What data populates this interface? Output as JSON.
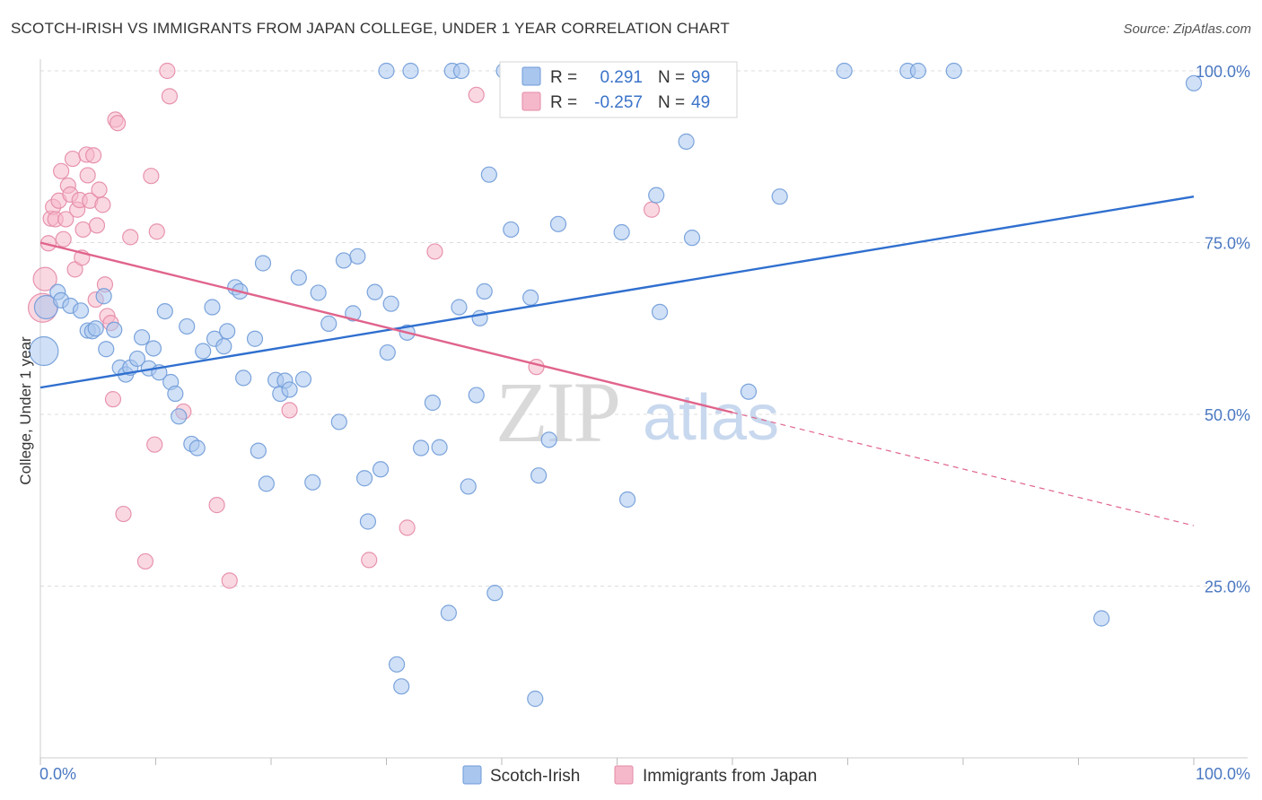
{
  "title": "SCOTCH-IRISH VS IMMIGRANTS FROM JAPAN COLLEGE, UNDER 1 YEAR CORRELATION CHART",
  "source": "Source: ZipAtlas.com",
  "watermark": {
    "zip": "ZIP",
    "atlas": "atlas"
  },
  "legend": {
    "r_label": "R =",
    "n_label": "N =",
    "rows": [
      {
        "r": "0.291",
        "n": "99",
        "color": "#a9c6ee",
        "edge": "#6f9bd8"
      },
      {
        "r": "-0.257",
        "n": "49",
        "color": "#f5b8cb",
        "edge": "#e48aa6"
      }
    ]
  },
  "bottom_legend": [
    {
      "label": "Scotch-Irish",
      "color": "#a9c6ee",
      "edge": "#6f9bd8"
    },
    {
      "label": "Immigrants from Japan",
      "color": "#f5b8cb",
      "edge": "#e48aa6"
    }
  ],
  "colors": {
    "blue_fill": "#a9c6ee",
    "blue_edge": "#6f9bd8",
    "blue_line": "#2f6fcf",
    "pink_fill": "#f5b8cb",
    "pink_edge": "#e48aa6",
    "pink_line": "#e0648c",
    "grid": "#dddddd",
    "tick_text": "#4a78c2"
  },
  "chart_data": {
    "type": "scatter",
    "title": "SCOTCH-IRISH VS IMMIGRANTS FROM JAPAN COLLEGE, UNDER 1 YEAR CORRELATION CHART",
    "xlabel": "",
    "ylabel": "College, Under 1 year",
    "xlim": [
      0,
      100
    ],
    "ylim": [
      0,
      100
    ],
    "x_ticks": [
      "0.0%",
      "100.0%"
    ],
    "y_ticks": [
      {
        "value": 25,
        "label": "25.0%"
      },
      {
        "value": 50,
        "label": "50.0%"
      },
      {
        "value": 75,
        "label": "75.0%"
      },
      {
        "value": 100,
        "label": "100.0%"
      }
    ],
    "grid": true,
    "legend_position": "top-center",
    "series": [
      {
        "name": "Scotch-Irish",
        "r": 0.291,
        "n": 99,
        "trend": {
          "x0": 0,
          "y0": 53.9,
          "x1": 100,
          "y1": 81.7,
          "dashed_from": null
        },
        "points": [
          [
            0.3,
            59.2,
            3
          ],
          [
            0.5,
            65.6,
            2
          ],
          [
            1.5,
            67.8,
            1
          ],
          [
            1.8,
            66.6,
            1
          ],
          [
            2.6,
            65.8,
            1
          ],
          [
            3.5,
            65.1,
            1
          ],
          [
            4.1,
            62.2,
            1
          ],
          [
            4.5,
            62.1,
            1
          ],
          [
            4.8,
            62.5,
            1
          ],
          [
            5.5,
            67.2,
            1
          ],
          [
            5.7,
            59.5,
            1
          ],
          [
            6.4,
            62.3,
            1
          ],
          [
            6.9,
            56.8,
            1
          ],
          [
            7.4,
            55.8,
            1
          ],
          [
            7.8,
            56.8,
            1
          ],
          [
            8.4,
            58.1,
            1
          ],
          [
            8.8,
            61.2,
            1
          ],
          [
            9.4,
            56.7,
            1
          ],
          [
            9.8,
            59.6,
            1
          ],
          [
            10.3,
            56.1,
            1
          ],
          [
            10.8,
            65.0,
            1
          ],
          [
            11.3,
            54.7,
            1
          ],
          [
            11.7,
            53.0,
            1
          ],
          [
            12.0,
            49.7,
            1
          ],
          [
            12.7,
            62.8,
            1
          ],
          [
            13.1,
            45.7,
            1
          ],
          [
            13.6,
            45.1,
            1
          ],
          [
            14.1,
            59.2,
            1
          ],
          [
            14.9,
            65.6,
            1
          ],
          [
            15.1,
            61.0,
            1
          ],
          [
            15.9,
            59.9,
            1
          ],
          [
            16.2,
            62.1,
            1
          ],
          [
            16.9,
            68.5,
            1
          ],
          [
            17.3,
            67.9,
            1
          ],
          [
            17.6,
            55.3,
            1
          ],
          [
            18.6,
            61.0,
            1
          ],
          [
            18.9,
            44.7,
            1
          ],
          [
            19.3,
            72.0,
            1
          ],
          [
            19.6,
            39.9,
            1
          ],
          [
            20.4,
            55.0,
            1
          ],
          [
            20.8,
            53.0,
            1
          ],
          [
            21.2,
            54.9,
            1
          ],
          [
            21.6,
            53.6,
            1
          ],
          [
            22.4,
            69.9,
            1
          ],
          [
            22.8,
            55.1,
            1
          ],
          [
            23.6,
            40.1,
            1
          ],
          [
            24.1,
            67.7,
            1
          ],
          [
            25.0,
            63.2,
            1
          ],
          [
            25.9,
            48.9,
            1
          ],
          [
            26.3,
            72.4,
            1
          ],
          [
            27.1,
            64.7,
            1
          ],
          [
            27.5,
            73.0,
            1
          ],
          [
            28.1,
            40.7,
            1
          ],
          [
            28.4,
            34.4,
            1
          ],
          [
            29.0,
            67.8,
            1
          ],
          [
            29.5,
            42.0,
            1
          ],
          [
            30.1,
            59.0,
            1
          ],
          [
            30.4,
            66.1,
            1
          ],
          [
            30.9,
            13.6,
            1
          ],
          [
            31.3,
            10.4,
            1
          ],
          [
            31.8,
            61.9,
            1
          ],
          [
            33.0,
            45.1,
            1
          ],
          [
            34.0,
            51.7,
            1
          ],
          [
            34.6,
            45.2,
            1
          ],
          [
            35.4,
            21.1,
            1
          ],
          [
            35.7,
            100.0,
            1
          ],
          [
            36.3,
            65.6,
            1
          ],
          [
            37.1,
            39.5,
            1
          ],
          [
            37.8,
            52.8,
            1
          ],
          [
            38.1,
            64.0,
            1
          ],
          [
            38.5,
            67.9,
            1
          ],
          [
            38.9,
            84.9,
            1
          ],
          [
            39.4,
            24.0,
            1
          ],
          [
            40.2,
            100.0,
            1
          ],
          [
            40.8,
            76.9,
            1
          ],
          [
            42.5,
            67.0,
            1
          ],
          [
            42.9,
            8.6,
            1
          ],
          [
            43.2,
            41.1,
            1
          ],
          [
            44.1,
            46.3,
            1
          ],
          [
            44.9,
            77.7,
            1
          ],
          [
            48.0,
            100.0,
            1
          ],
          [
            48.8,
            100.0,
            1
          ],
          [
            50.4,
            76.5,
            1
          ],
          [
            50.9,
            37.6,
            1
          ],
          [
            53.4,
            81.9,
            1
          ],
          [
            53.7,
            64.9,
            1
          ],
          [
            56.0,
            89.7,
            1
          ],
          [
            56.5,
            75.7,
            1
          ],
          [
            61.4,
            53.3,
            1
          ],
          [
            64.1,
            81.7,
            1
          ],
          [
            69.7,
            100.0,
            1
          ],
          [
            75.2,
            100.0,
            1
          ],
          [
            76.1,
            100.0,
            1
          ],
          [
            79.2,
            100.0,
            1
          ],
          [
            92.0,
            20.3,
            1
          ],
          [
            100.0,
            98.2,
            1
          ],
          [
            32.1,
            100.0,
            1
          ],
          [
            36.5,
            100.0,
            1
          ],
          [
            30.0,
            100.0,
            1
          ]
        ]
      },
      {
        "name": "Immigrants from Japan",
        "r": -0.257,
        "n": 49,
        "trend": {
          "x0": 0,
          "y0": 75.0,
          "x1": 100,
          "y1": 33.8,
          "dashed_from": 60.0
        },
        "points": [
          [
            0.2,
            65.5,
            3
          ],
          [
            0.4,
            69.7,
            2
          ],
          [
            0.7,
            74.9,
            1
          ],
          [
            0.9,
            78.5,
            1
          ],
          [
            1.1,
            80.2,
            1
          ],
          [
            1.3,
            78.4,
            1
          ],
          [
            1.6,
            81.1,
            1
          ],
          [
            1.8,
            85.4,
            1
          ],
          [
            2.0,
            75.5,
            1
          ],
          [
            2.2,
            78.4,
            1
          ],
          [
            2.4,
            83.3,
            1
          ],
          [
            2.6,
            82.0,
            1
          ],
          [
            2.8,
            87.2,
            1
          ],
          [
            3.0,
            71.1,
            1
          ],
          [
            3.2,
            79.8,
            1
          ],
          [
            3.4,
            81.2,
            1
          ],
          [
            3.6,
            72.8,
            1
          ],
          [
            3.7,
            76.9,
            1
          ],
          [
            4.0,
            87.8,
            1
          ],
          [
            4.1,
            84.8,
            1
          ],
          [
            4.3,
            81.1,
            1
          ],
          [
            4.6,
            87.7,
            1
          ],
          [
            4.8,
            66.7,
            1
          ],
          [
            4.9,
            77.5,
            1
          ],
          [
            5.1,
            82.7,
            1
          ],
          [
            5.4,
            80.5,
            1
          ],
          [
            5.6,
            68.9,
            1
          ],
          [
            5.8,
            64.3,
            1
          ],
          [
            6.1,
            63.3,
            1
          ],
          [
            6.3,
            52.2,
            1
          ],
          [
            6.5,
            92.9,
            1
          ],
          [
            6.7,
            92.4,
            1
          ],
          [
            7.2,
            35.5,
            1
          ],
          [
            7.8,
            75.8,
            1
          ],
          [
            9.1,
            28.6,
            1
          ],
          [
            9.6,
            84.7,
            1
          ],
          [
            9.9,
            45.6,
            1
          ],
          [
            10.1,
            76.6,
            1
          ],
          [
            11.0,
            100.0,
            1
          ],
          [
            11.2,
            96.3,
            1
          ],
          [
            12.4,
            50.4,
            1
          ],
          [
            15.3,
            36.8,
            1
          ],
          [
            16.4,
            25.8,
            1
          ],
          [
            21.6,
            50.6,
            1
          ],
          [
            28.5,
            28.8,
            1
          ],
          [
            31.8,
            33.5,
            1
          ],
          [
            34.2,
            73.7,
            1
          ],
          [
            37.8,
            96.5,
            1
          ],
          [
            43.0,
            56.9,
            1
          ],
          [
            53.0,
            79.8,
            1
          ]
        ]
      }
    ]
  }
}
